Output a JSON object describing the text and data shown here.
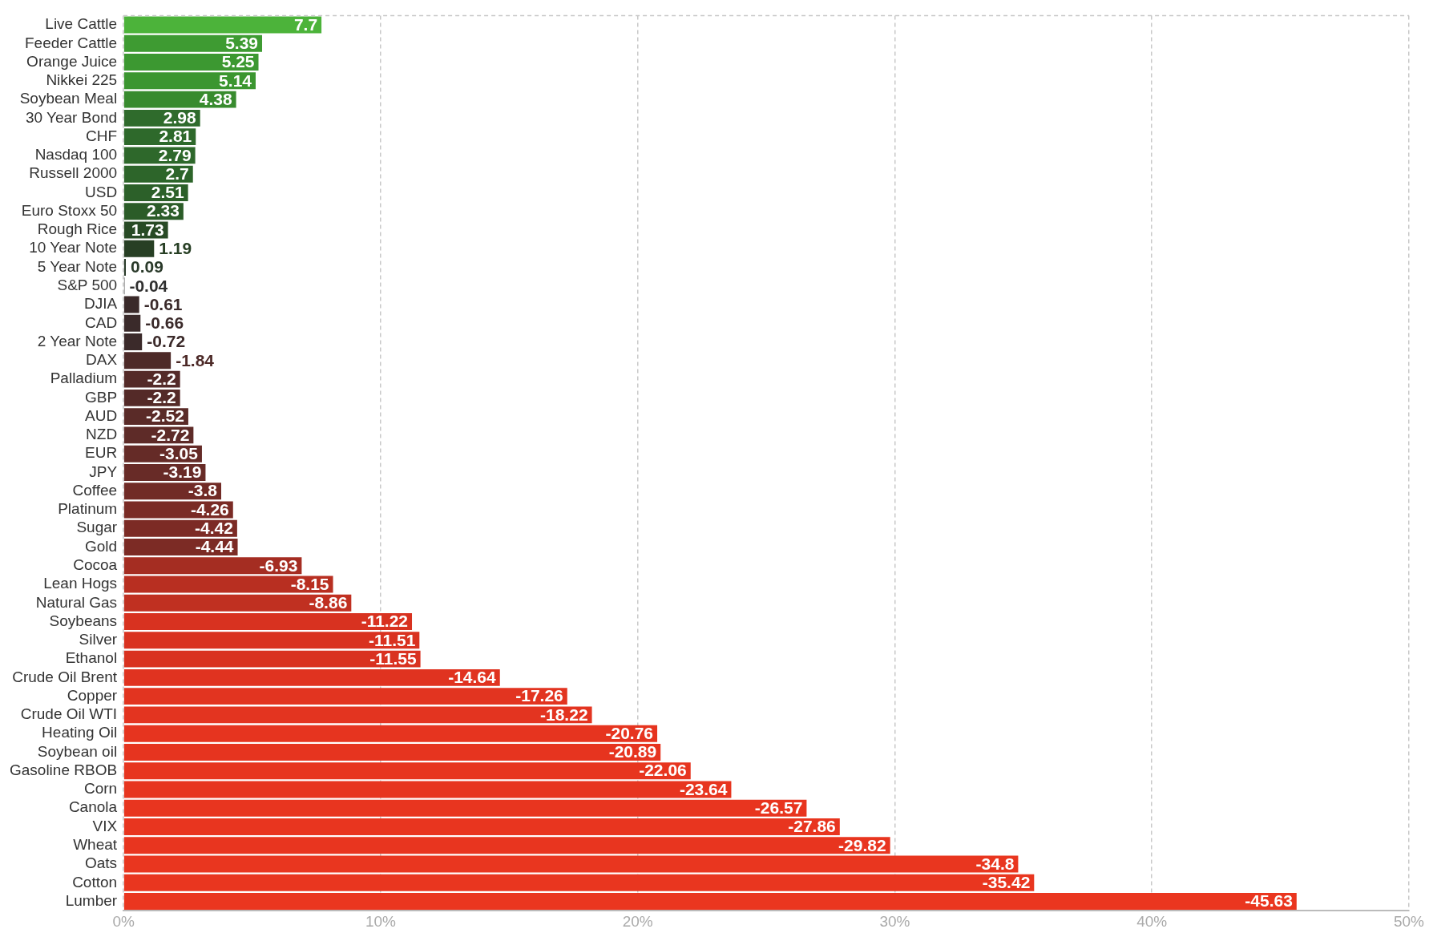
{
  "chart_data": {
    "type": "bar",
    "orientation": "horizontal",
    "categories": [
      "Live Cattle",
      "Feeder Cattle",
      "Orange Juice",
      "Nikkei 225",
      "Soybean Meal",
      "30 Year Bond",
      "CHF",
      "Nasdaq 100",
      "Russell 2000",
      "USD",
      "Euro Stoxx 50",
      "Rough Rice",
      "10 Year Note",
      "5 Year Note",
      "S&P 500",
      "DJIA",
      "CAD",
      "2 Year Note",
      "DAX",
      "Palladium",
      "GBP",
      "AUD",
      "NZD",
      "EUR",
      "JPY",
      "Coffee",
      "Platinum",
      "Sugar",
      "Gold",
      "Cocoa",
      "Lean Hogs",
      "Natural Gas",
      "Soybeans",
      "Silver",
      "Ethanol",
      "Crude Oil Brent",
      "Copper",
      "Crude Oil WTI",
      "Heating Oil",
      "Soybean oil",
      "Gasoline RBOB",
      "Corn",
      "Canola",
      "VIX",
      "Wheat",
      "Oats",
      "Cotton",
      "Lumber"
    ],
    "values": [
      7.7,
      5.39,
      5.25,
      5.14,
      4.38,
      2.98,
      2.81,
      2.79,
      2.7,
      2.51,
      2.33,
      1.73,
      1.19,
      0.09,
      -0.04,
      -0.61,
      -0.66,
      -0.72,
      -1.84,
      -2.2,
      -2.2,
      -2.52,
      -2.72,
      -3.05,
      -3.19,
      -3.8,
      -4.26,
      -4.42,
      -4.44,
      -6.93,
      -8.15,
      -8.86,
      -11.22,
      -11.51,
      -11.55,
      -14.64,
      -17.26,
      -18.22,
      -20.76,
      -20.89,
      -22.06,
      -23.64,
      -26.57,
      -27.86,
      -29.82,
      -34.8,
      -35.42,
      -45.63
    ],
    "base": [
      0,
      0,
      0,
      0,
      0,
      0,
      0,
      0,
      0,
      0,
      0,
      0,
      0,
      0,
      0.04,
      0.61,
      0.66,
      0.72,
      1.84,
      2.2,
      2.2,
      2.52,
      2.72,
      3.05,
      3.19,
      3.8,
      4.26,
      4.42,
      4.44,
      6.93,
      8.15,
      8.86,
      11.22,
      11.51,
      11.55,
      14.64,
      17.26,
      18.22,
      20.76,
      20.89,
      22.06,
      23.64,
      26.57,
      27.86,
      29.82,
      34.8,
      35.42,
      45.63
    ],
    "data_labels": true,
    "colors": [
      "#4cb33a",
      "#3e9b32",
      "#3c9831",
      "#3b9630",
      "#388b2e",
      "#2f6b2c",
      "#2e692b",
      "#2e682b",
      "#2d652a",
      "#2c6029",
      "#2b5c28",
      "#284a25",
      "#273f24",
      "#2a3a2a",
      "#2f2f2f",
      "#3a2a2a",
      "#3a2a2a",
      "#3b2a2a",
      "#4d2a28",
      "#542a28",
      "#542a28",
      "#5a2b28",
      "#5e2b28",
      "#652b27",
      "#682b27",
      "#712b26",
      "#7a2b25",
      "#7c2b25",
      "#7c2b25",
      "#a52d22",
      "#b82f21",
      "#c03021",
      "#d83220",
      "#d93220",
      "#d93220",
      "#e03320",
      "#e23420",
      "#e33420",
      "#e6341f",
      "#e6341f",
      "#e7351f",
      "#e7351f",
      "#e8351f",
      "#e8351f",
      "#e8351f",
      "#e9361f",
      "#e9361f",
      "#ea361f"
    ],
    "xlim": [
      0,
      50
    ],
    "xticks": [
      {
        "value": 0,
        "label": "0%"
      },
      {
        "value": 10,
        "label": "10%"
      },
      {
        "value": 20,
        "label": "20%"
      },
      {
        "value": 30,
        "label": "30%"
      },
      {
        "value": 40,
        "label": "40%"
      },
      {
        "value": 50,
        "label": "50%"
      }
    ],
    "grid": "x",
    "legend": false
  }
}
